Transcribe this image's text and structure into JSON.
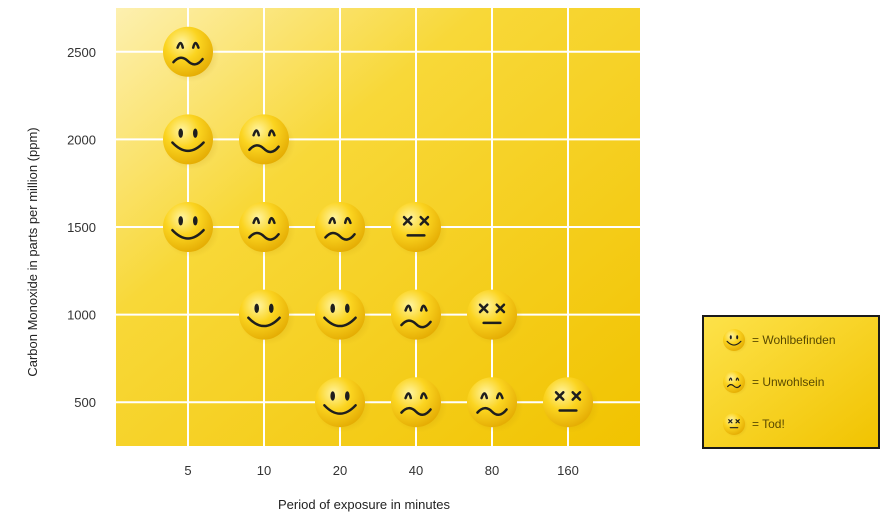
{
  "chart_data": {
    "type": "scatter",
    "title": "",
    "xlabel": "Period of exposure in minutes",
    "ylabel": "Carbon Monoxide in parts per million (ppm)",
    "x_categories": [
      "5",
      "10",
      "20",
      "40",
      "80",
      "160"
    ],
    "y_ticks": [
      "500",
      "1000",
      "1500",
      "2000",
      "2500"
    ],
    "ylim": [
      250,
      2750
    ],
    "grid": true,
    "colors": {
      "plot": "#f5c800",
      "face": "#f7cc10",
      "features": "#1e1e1e"
    },
    "series": [
      {
        "name": "Wohlbefinden",
        "face": "happy",
        "points": [
          {
            "x": "5",
            "y": 2000
          },
          {
            "x": "5",
            "y": 1500
          },
          {
            "x": "10",
            "y": 1000
          },
          {
            "x": "20",
            "y": 1000
          },
          {
            "x": "20",
            "y": 500
          }
        ]
      },
      {
        "name": "Unwohlsein",
        "face": "sick",
        "points": [
          {
            "x": "5",
            "y": 2500
          },
          {
            "x": "10",
            "y": 2000
          },
          {
            "x": "10",
            "y": 1500
          },
          {
            "x": "20",
            "y": 1500
          },
          {
            "x": "40",
            "y": 1000
          },
          {
            "x": "40",
            "y": 500
          },
          {
            "x": "80",
            "y": 500
          }
        ]
      },
      {
        "name": "Tod!",
        "face": "dead",
        "points": [
          {
            "x": "40",
            "y": 1500
          },
          {
            "x": "80",
            "y": 1000
          },
          {
            "x": "160",
            "y": 500
          }
        ]
      }
    ],
    "legend": {
      "placement": "right",
      "items": [
        {
          "face": "happy",
          "label": "= Wohlbefinden"
        },
        {
          "face": "sick",
          "label": " = Unwohlsein"
        },
        {
          "face": "dead",
          "label": "= Tod!"
        }
      ]
    }
  }
}
